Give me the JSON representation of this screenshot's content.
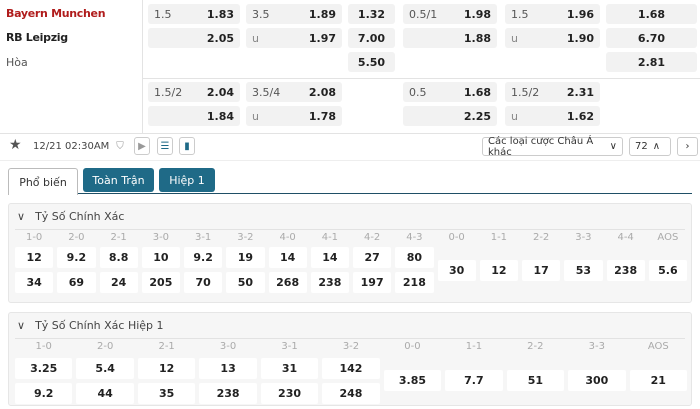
{
  "teams": {
    "home": "Bayern Munchen",
    "away": "RB Leipzig",
    "draw": "Hòa",
    "home_color": "#b01c1c"
  },
  "odds_block1": {
    "c1": [
      {
        "h": "1.5",
        "o": "1.83"
      },
      {
        "h": "",
        "o": "2.05"
      }
    ],
    "c2": [
      {
        "h": "3.5",
        "o": "1.89"
      },
      {
        "h": "u",
        "o": "1.97"
      }
    ],
    "c3": [
      "1.32",
      "7.00",
      "5.50"
    ],
    "c4": [
      {
        "h": "0.5/1",
        "o": "1.98"
      },
      {
        "h": "",
        "o": "1.88"
      }
    ],
    "c5": [
      {
        "h": "1.5",
        "o": "1.96"
      },
      {
        "h": "u",
        "o": "1.90"
      }
    ],
    "c6": [
      "1.68",
      "6.70",
      "2.81"
    ]
  },
  "odds_block2": {
    "c1": [
      {
        "h": "1.5/2",
        "o": "2.04"
      },
      {
        "h": "",
        "o": "1.84"
      }
    ],
    "c2": [
      {
        "h": "3.5/4",
        "o": "2.08"
      },
      {
        "h": "u",
        "o": "1.78"
      }
    ],
    "c4": [
      {
        "h": "0.5",
        "o": "1.68"
      },
      {
        "h": "",
        "o": "2.25"
      }
    ],
    "c5": [
      {
        "h": "1.5/2",
        "o": "2.31"
      },
      {
        "h": "u",
        "o": "1.62"
      }
    ]
  },
  "toolbar": {
    "datetime": "12/21 02:30AM",
    "market_select": "Các loại cược Châu Á khác",
    "count": "72"
  },
  "tabs": [
    {
      "label": "Phổ biến"
    },
    {
      "label": "Toàn Trận"
    },
    {
      "label": "Hiệp 1"
    }
  ],
  "sections": [
    {
      "title": "Tỷ Số Chính Xác",
      "scores": [
        [
          "1-0",
          "12",
          "34"
        ],
        [
          "2-0",
          "9.2",
          "69"
        ],
        [
          "2-1",
          "8.8",
          "24"
        ],
        [
          "3-0",
          "10",
          "205"
        ],
        [
          "3-1",
          "9.2",
          "70"
        ],
        [
          "3-2",
          "19",
          "50"
        ],
        [
          "4-0",
          "14",
          "268"
        ],
        [
          "4-1",
          "14",
          "238"
        ],
        [
          "4-2",
          "27",
          "197"
        ],
        [
          "4-3",
          "80",
          "218"
        ]
      ],
      "draws": [
        [
          "0-0",
          "30"
        ],
        [
          "1-1",
          "12"
        ],
        [
          "2-2",
          "17"
        ],
        [
          "3-3",
          "53"
        ],
        [
          "4-4",
          "238"
        ],
        [
          "AOS",
          "5.6"
        ]
      ]
    },
    {
      "title": "Tỷ Số Chính Xác Hiệp 1",
      "scores": [
        [
          "1-0",
          "3.25",
          "9.2"
        ],
        [
          "2-0",
          "5.4",
          "44"
        ],
        [
          "2-1",
          "12",
          "35"
        ],
        [
          "3-0",
          "13",
          "238"
        ],
        [
          "3-1",
          "31",
          "230"
        ],
        [
          "3-2",
          "142",
          "248"
        ]
      ],
      "draws": [
        [
          "0-0",
          "3.85"
        ],
        [
          "1-1",
          "7.7"
        ],
        [
          "2-2",
          "51"
        ],
        [
          "3-3",
          "300"
        ],
        [
          "AOS",
          "21"
        ]
      ]
    }
  ]
}
